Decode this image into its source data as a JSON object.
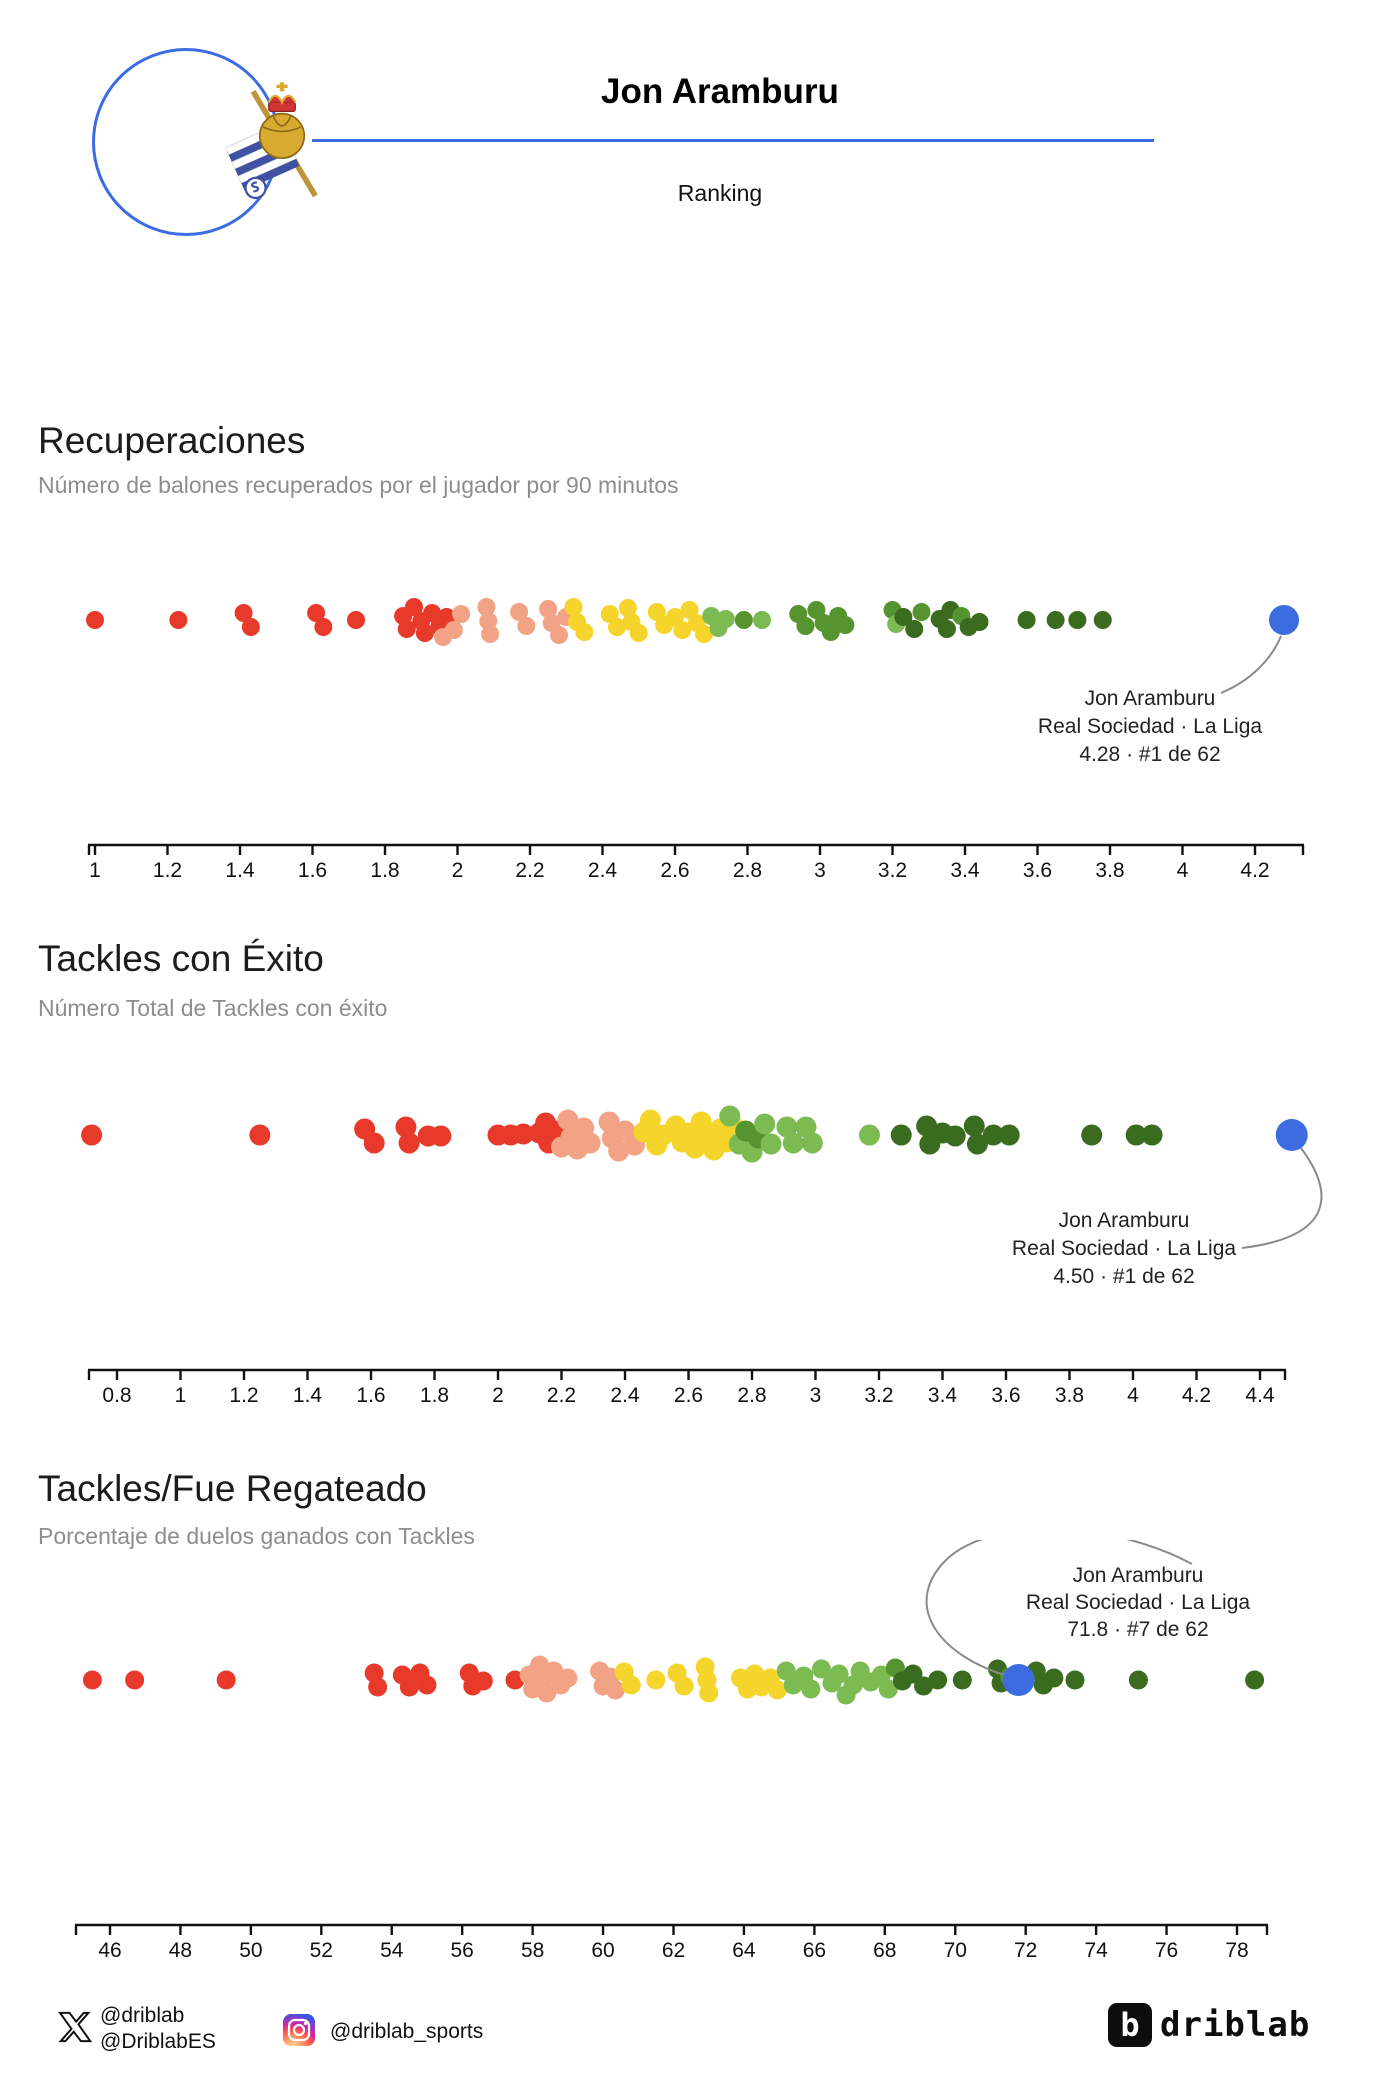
{
  "header": {
    "player_name": "Jon Aramburu",
    "subtitle": "Ranking",
    "club_crest": "real-sociedad-crest",
    "accent_color": "#3b6ce4"
  },
  "colors": {
    "r": "#e83a2a",
    "s": "#f2a285",
    "y": "#f5d42c",
    "lg": "#7cba52",
    "g": "#55942f",
    "dg": "#3a6b1e",
    "hi": "#3c6ce0"
  },
  "footer": {
    "x_handle_1": "@driblab",
    "x_handle_2": "@DriblabES",
    "instagram_handle": "@driblab_sports",
    "brand_word": "driblab",
    "brand_glyph": "b"
  },
  "chart_data": [
    {
      "type": "scatter",
      "title": "Recuperaciones",
      "subtitle": "Número de balones recuperados por el jugador por 90 minutos",
      "xlim": [
        0.98,
        4.33
      ],
      "grid": false,
      "annotation": {
        "lines": [
          "Jon Aramburu",
          "Real Sociedad · La Liga",
          "4.28 · #1 de 62"
        ]
      },
      "highlight": {
        "value": 4.28,
        "rank": 1,
        "of": 62
      },
      "ticks": [
        [
          1,
          "1"
        ],
        [
          1.2,
          "1.2"
        ],
        [
          1.4,
          "1.4"
        ],
        [
          1.6,
          "1.6"
        ],
        [
          1.8,
          "1.8"
        ],
        [
          2,
          "2"
        ],
        [
          2.2,
          "2.2"
        ],
        [
          2.4,
          "2.4"
        ],
        [
          2.6,
          "2.6"
        ],
        [
          2.8,
          "2.8"
        ],
        [
          3,
          "3"
        ],
        [
          3.2,
          "3.2"
        ],
        [
          3.4,
          "3.4"
        ],
        [
          3.6,
          "3.6"
        ],
        [
          3.8,
          "3.8"
        ],
        [
          4,
          "4"
        ],
        [
          4.2,
          "4.2"
        ]
      ],
      "points": [
        [
          1.0,
          0,
          "r"
        ],
        [
          1.23,
          0,
          "r"
        ],
        [
          1.41,
          -7,
          "r"
        ],
        [
          1.43,
          7,
          "r"
        ],
        [
          1.61,
          -7,
          "r"
        ],
        [
          1.63,
          7,
          "r"
        ],
        [
          1.72,
          0,
          "r"
        ],
        [
          1.85,
          -4,
          "r"
        ],
        [
          1.86,
          9,
          "r"
        ],
        [
          1.88,
          -13,
          "r"
        ],
        [
          1.9,
          1,
          "r"
        ],
        [
          1.91,
          13,
          "r"
        ],
        [
          1.93,
          -7,
          "r"
        ],
        [
          1.95,
          6,
          "r"
        ],
        [
          1.97,
          -3,
          "r"
        ],
        [
          1.96,
          17,
          "s"
        ],
        [
          1.99,
          10,
          "s"
        ],
        [
          2.01,
          -6,
          "s"
        ],
        [
          2.08,
          -13,
          "s"
        ],
        [
          2.085,
          1,
          "s"
        ],
        [
          2.09,
          14,
          "s"
        ],
        [
          2.17,
          -8,
          "s"
        ],
        [
          2.19,
          6,
          "s"
        ],
        [
          2.25,
          -11,
          "s"
        ],
        [
          2.26,
          3,
          "s"
        ],
        [
          2.28,
          15,
          "s"
        ],
        [
          2.3,
          -3,
          "s"
        ],
        [
          2.32,
          -13,
          "y"
        ],
        [
          2.33,
          2,
          "y"
        ],
        [
          2.35,
          12,
          "y"
        ],
        [
          2.42,
          -6,
          "y"
        ],
        [
          2.44,
          7,
          "y"
        ],
        [
          2.47,
          -12,
          "y"
        ],
        [
          2.48,
          2,
          "y"
        ],
        [
          2.5,
          13,
          "y"
        ],
        [
          2.55,
          -8,
          "y"
        ],
        [
          2.57,
          5,
          "y"
        ],
        [
          2.6,
          -3,
          "y"
        ],
        [
          2.62,
          10,
          "y"
        ],
        [
          2.64,
          -10,
          "y"
        ],
        [
          2.66,
          3,
          "y"
        ],
        [
          2.68,
          14,
          "y"
        ],
        [
          2.7,
          -4,
          "lg"
        ],
        [
          2.72,
          8,
          "lg"
        ],
        [
          2.74,
          -1,
          "lg"
        ],
        [
          2.79,
          0,
          "g"
        ],
        [
          2.84,
          0,
          "lg"
        ],
        [
          2.94,
          -6,
          "g"
        ],
        [
          2.96,
          6,
          "g"
        ],
        [
          2.99,
          -10,
          "g"
        ],
        [
          3.01,
          3,
          "g"
        ],
        [
          3.03,
          12,
          "g"
        ],
        [
          3.05,
          -4,
          "g"
        ],
        [
          3.07,
          5,
          "g"
        ],
        [
          3.2,
          -10,
          "g"
        ],
        [
          3.21,
          4,
          "lg"
        ],
        [
          3.23,
          -3,
          "dg"
        ],
        [
          3.26,
          9,
          "dg"
        ],
        [
          3.28,
          -8,
          "g"
        ],
        [
          3.33,
          -1,
          "dg"
        ],
        [
          3.35,
          9,
          "dg"
        ],
        [
          3.36,
          -10,
          "dg"
        ],
        [
          3.39,
          -4,
          "g"
        ],
        [
          3.41,
          7,
          "dg"
        ],
        [
          3.44,
          2,
          "dg"
        ],
        [
          3.57,
          0,
          "dg"
        ],
        [
          3.65,
          0,
          "dg"
        ],
        [
          3.71,
          0,
          "dg"
        ],
        [
          3.78,
          0,
          "dg"
        ]
      ]
    },
    {
      "type": "scatter",
      "title": "Tackles con Éxito",
      "subtitle": "Número Total de Tackles con éxito",
      "xlim": [
        0.65,
        4.55
      ],
      "grid": false,
      "annotation": {
        "lines": [
          "Jon Aramburu",
          "Real Sociedad · La Liga",
          "4.50 · #1 de 62"
        ]
      },
      "highlight": {
        "value": 4.5,
        "rank": 1,
        "of": 62
      },
      "ticks": [
        [
          0.8,
          "0.8"
        ],
        [
          1,
          "1"
        ],
        [
          1.2,
          "1.2"
        ],
        [
          1.4,
          "1.4"
        ],
        [
          1.6,
          "1.6"
        ],
        [
          1.8,
          "1.8"
        ],
        [
          2,
          "2"
        ],
        [
          2.2,
          "2.2"
        ],
        [
          2.4,
          "2.4"
        ],
        [
          2.6,
          "2.6"
        ],
        [
          2.8,
          "2.8"
        ],
        [
          3,
          "3"
        ],
        [
          3.2,
          "3.2"
        ],
        [
          3.4,
          "3.4"
        ],
        [
          3.6,
          "3.6"
        ],
        [
          3.8,
          "3.8"
        ],
        [
          4,
          "4"
        ],
        [
          4.2,
          "4.2"
        ],
        [
          4.4,
          "4.4"
        ]
      ],
      "points": [
        [
          0.72,
          0,
          "r"
        ],
        [
          1.25,
          0,
          "r"
        ],
        [
          1.58,
          -6,
          "r"
        ],
        [
          1.61,
          8,
          "r"
        ],
        [
          1.71,
          -8,
          "r"
        ],
        [
          1.72,
          8,
          "r"
        ],
        [
          1.78,
          1,
          "r"
        ],
        [
          1.82,
          1,
          "r"
        ],
        [
          2.0,
          0,
          "r"
        ],
        [
          2.04,
          0,
          "r"
        ],
        [
          2.08,
          -1,
          "r"
        ],
        [
          2.13,
          -2,
          "r"
        ],
        [
          2.15,
          -12,
          "r"
        ],
        [
          2.16,
          8,
          "r"
        ],
        [
          2.18,
          -4,
          "r"
        ],
        [
          2.2,
          12,
          "s"
        ],
        [
          2.22,
          -15,
          "s"
        ],
        [
          2.23,
          2,
          "s"
        ],
        [
          2.25,
          14,
          "s"
        ],
        [
          2.27,
          -7,
          "s"
        ],
        [
          2.29,
          8,
          "s"
        ],
        [
          2.35,
          -13,
          "s"
        ],
        [
          2.36,
          3,
          "s"
        ],
        [
          2.38,
          16,
          "s"
        ],
        [
          2.4,
          -4,
          "s"
        ],
        [
          2.43,
          10,
          "s"
        ],
        [
          2.46,
          -3,
          "y"
        ],
        [
          2.48,
          -15,
          "y"
        ],
        [
          2.5,
          10,
          "y"
        ],
        [
          2.52,
          0,
          "y"
        ],
        [
          2.56,
          -9,
          "y"
        ],
        [
          2.58,
          7,
          "y"
        ],
        [
          2.6,
          -2,
          "y"
        ],
        [
          2.62,
          13,
          "y"
        ],
        [
          2.64,
          -13,
          "y"
        ],
        [
          2.66,
          2,
          "y"
        ],
        [
          2.68,
          15,
          "y"
        ],
        [
          2.7,
          -6,
          "y"
        ],
        [
          2.72,
          7,
          "y"
        ],
        [
          2.74,
          -9,
          "y"
        ],
        [
          2.73,
          -19,
          "lg"
        ],
        [
          2.76,
          9,
          "lg"
        ],
        [
          2.78,
          -4,
          "g"
        ],
        [
          2.8,
          17,
          "lg"
        ],
        [
          2.82,
          3,
          "g"
        ],
        [
          2.84,
          -11,
          "lg"
        ],
        [
          2.86,
          9,
          "lg"
        ],
        [
          2.91,
          -8,
          "lg"
        ],
        [
          2.93,
          8,
          "lg"
        ],
        [
          2.97,
          -8,
          "lg"
        ],
        [
          2.99,
          8,
          "lg"
        ],
        [
          3.17,
          0,
          "lg"
        ],
        [
          3.27,
          0,
          "dg"
        ],
        [
          3.35,
          -9,
          "dg"
        ],
        [
          3.36,
          9,
          "dg"
        ],
        [
          3.4,
          -2,
          "dg"
        ],
        [
          3.44,
          1,
          "dg"
        ],
        [
          3.5,
          -9,
          "dg"
        ],
        [
          3.51,
          9,
          "dg"
        ],
        [
          3.56,
          0,
          "dg"
        ],
        [
          3.61,
          0,
          "dg"
        ],
        [
          3.87,
          0,
          "dg"
        ],
        [
          4.01,
          0,
          "dg"
        ],
        [
          4.06,
          0,
          "dg"
        ]
      ]
    },
    {
      "type": "scatter",
      "title": "Tackles/Fue Regateado",
      "subtitle": "Porcentaje de duelos ganados con Tackles",
      "xlim": [
        45,
        79
      ],
      "grid": false,
      "annotation": {
        "lines": [
          "Jon Aramburu",
          "Real Sociedad · La Liga",
          "71.8 · #7 de 62"
        ]
      },
      "highlight": {
        "value": 71.8,
        "rank": 7,
        "of": 62
      },
      "ticks": [
        [
          46,
          "46"
        ],
        [
          48,
          "48"
        ],
        [
          50,
          "50"
        ],
        [
          52,
          "52"
        ],
        [
          54,
          "54"
        ],
        [
          56,
          "56"
        ],
        [
          58,
          "58"
        ],
        [
          60,
          "60"
        ],
        [
          62,
          "62"
        ],
        [
          64,
          "64"
        ],
        [
          66,
          "66"
        ],
        [
          68,
          "68"
        ],
        [
          70,
          "70"
        ],
        [
          72,
          "72"
        ],
        [
          74,
          "74"
        ],
        [
          76,
          "76"
        ],
        [
          78,
          "78"
        ]
      ],
      "points": [
        [
          45.5,
          0,
          "r"
        ],
        [
          46.7,
          0,
          "r"
        ],
        [
          49.3,
          0,
          "r"
        ],
        [
          53.5,
          -7,
          "r"
        ],
        [
          53.6,
          7,
          "r"
        ],
        [
          54.3,
          -5,
          "r"
        ],
        [
          54.5,
          7,
          "r"
        ],
        [
          54.8,
          -7,
          "r"
        ],
        [
          55.0,
          5,
          "r"
        ],
        [
          56.2,
          -7,
          "r"
        ],
        [
          56.3,
          6,
          "r"
        ],
        [
          56.6,
          1,
          "r"
        ],
        [
          57.5,
          0,
          "r"
        ],
        [
          57.9,
          -5,
          "s"
        ],
        [
          58.0,
          9,
          "s"
        ],
        [
          58.2,
          -15,
          "s"
        ],
        [
          58.3,
          -1,
          "s"
        ],
        [
          58.4,
          13,
          "s"
        ],
        [
          58.6,
          -9,
          "s"
        ],
        [
          58.8,
          5,
          "s"
        ],
        [
          59.0,
          -2,
          "s"
        ],
        [
          59.9,
          -9,
          "s"
        ],
        [
          60.0,
          6,
          "s"
        ],
        [
          60.2,
          -3,
          "s"
        ],
        [
          60.35,
          10,
          "s"
        ],
        [
          60.6,
          -8,
          "y"
        ],
        [
          60.8,
          5,
          "y"
        ],
        [
          61.5,
          0,
          "y"
        ],
        [
          62.1,
          -7,
          "y"
        ],
        [
          62.3,
          6,
          "y"
        ],
        [
          62.9,
          -13,
          "y"
        ],
        [
          62.95,
          0,
          "y"
        ],
        [
          63.0,
          13,
          "y"
        ],
        [
          63.9,
          -2,
          "y"
        ],
        [
          64.1,
          9,
          "y"
        ],
        [
          64.3,
          -6,
          "y"
        ],
        [
          64.5,
          7,
          "y"
        ],
        [
          64.75,
          -2,
          "y"
        ],
        [
          64.95,
          10,
          "y"
        ],
        [
          65.2,
          -9,
          "lg"
        ],
        [
          65.4,
          5,
          "lg"
        ],
        [
          65.7,
          -4,
          "lg"
        ],
        [
          65.9,
          9,
          "lg"
        ],
        [
          66.2,
          -11,
          "lg"
        ],
        [
          66.5,
          3,
          "lg"
        ],
        [
          66.7,
          -6,
          "lg"
        ],
        [
          66.9,
          15,
          "lg"
        ],
        [
          67.1,
          5,
          "lg"
        ],
        [
          67.3,
          -9,
          "lg"
        ],
        [
          67.6,
          2,
          "lg"
        ],
        [
          67.9,
          -5,
          "lg"
        ],
        [
          68.1,
          9,
          "lg"
        ],
        [
          68.3,
          -12,
          "g"
        ],
        [
          68.5,
          1,
          "dg"
        ],
        [
          68.8,
          -6,
          "dg"
        ],
        [
          69.1,
          6,
          "dg"
        ],
        [
          69.5,
          0,
          "dg"
        ],
        [
          70.2,
          0,
          "dg"
        ],
        [
          71.2,
          -11,
          "dg"
        ],
        [
          71.3,
          3,
          "dg"
        ],
        [
          71.55,
          -3,
          "g"
        ],
        [
          72.3,
          -9,
          "dg"
        ],
        [
          72.5,
          5,
          "dg"
        ],
        [
          72.8,
          -2,
          "dg"
        ],
        [
          73.4,
          0,
          "dg"
        ],
        [
          75.2,
          0,
          "dg"
        ],
        [
          78.5,
          0,
          "dg"
        ]
      ]
    }
  ]
}
